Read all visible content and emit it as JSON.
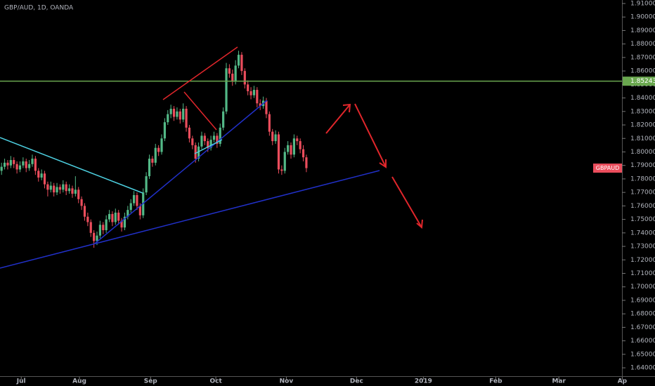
{
  "chart_data": {
    "type": "candlestick",
    "title": "GBP/AUD, 1D, OANDA",
    "up_color": "#53b987",
    "down_color": "#eb4d5c",
    "ohlc": [
      [
        1.786,
        1.792,
        1.783,
        1.789
      ],
      [
        1.789,
        1.795,
        1.787,
        1.792
      ],
      [
        1.792,
        1.794,
        1.787,
        1.79
      ],
      [
        1.79,
        1.797,
        1.788,
        1.794
      ],
      [
        1.794,
        1.796,
        1.788,
        1.791
      ],
      [
        1.791,
        1.793,
        1.784,
        1.787
      ],
      [
        1.787,
        1.793,
        1.785,
        1.79
      ],
      [
        1.79,
        1.796,
        1.788,
        1.793
      ],
      [
        1.793,
        1.795,
        1.785,
        1.788
      ],
      [
        1.788,
        1.794,
        1.786,
        1.791
      ],
      [
        1.791,
        1.798,
        1.789,
        1.795
      ],
      [
        1.795,
        1.797,
        1.783,
        1.786
      ],
      [
        1.786,
        1.788,
        1.778,
        1.781
      ],
      [
        1.781,
        1.787,
        1.779,
        1.784
      ],
      [
        1.784,
        1.786,
        1.773,
        1.776
      ],
      [
        1.776,
        1.778,
        1.767,
        1.772
      ],
      [
        1.772,
        1.778,
        1.77,
        1.775
      ],
      [
        1.775,
        1.777,
        1.767,
        1.77
      ],
      [
        1.77,
        1.777,
        1.768,
        1.774
      ],
      [
        1.774,
        1.776,
        1.769,
        1.772
      ],
      [
        1.772,
        1.779,
        1.77,
        1.776
      ],
      [
        1.776,
        1.778,
        1.768,
        1.771
      ],
      [
        1.771,
        1.776,
        1.769,
        1.773
      ],
      [
        1.773,
        1.775,
        1.766,
        1.769
      ],
      [
        1.769,
        1.782,
        1.767,
        1.772
      ],
      [
        1.772,
        1.774,
        1.762,
        1.765
      ],
      [
        1.765,
        1.767,
        1.757,
        1.76
      ],
      [
        1.76,
        1.762,
        1.749,
        1.752
      ],
      [
        1.752,
        1.755,
        1.745,
        1.748
      ],
      [
        1.748,
        1.75,
        1.737,
        1.74
      ],
      [
        1.74,
        1.742,
        1.729,
        1.734
      ],
      [
        1.734,
        1.741,
        1.731,
        1.738
      ],
      [
        1.738,
        1.749,
        1.736,
        1.746
      ],
      [
        1.746,
        1.748,
        1.739,
        1.742
      ],
      [
        1.742,
        1.753,
        1.74,
        1.75
      ],
      [
        1.75,
        1.757,
        1.748,
        1.754
      ],
      [
        1.754,
        1.756,
        1.745,
        1.748
      ],
      [
        1.748,
        1.758,
        1.746,
        1.755
      ],
      [
        1.755,
        1.757,
        1.746,
        1.749
      ],
      [
        1.749,
        1.751,
        1.741,
        1.744
      ],
      [
        1.744,
        1.755,
        1.742,
        1.752
      ],
      [
        1.752,
        1.76,
        1.75,
        1.757
      ],
      [
        1.757,
        1.765,
        1.755,
        1.762
      ],
      [
        1.762,
        1.771,
        1.76,
        1.768
      ],
      [
        1.768,
        1.77,
        1.757,
        1.76
      ],
      [
        1.76,
        1.762,
        1.75,
        1.753
      ],
      [
        1.753,
        1.773,
        1.751,
        1.77
      ],
      [
        1.77,
        1.785,
        1.768,
        1.782
      ],
      [
        1.782,
        1.798,
        1.78,
        1.795
      ],
      [
        1.795,
        1.797,
        1.789,
        1.792
      ],
      [
        1.792,
        1.806,
        1.79,
        1.803
      ],
      [
        1.803,
        1.805,
        1.797,
        1.8
      ],
      [
        1.8,
        1.813,
        1.798,
        1.81
      ],
      [
        1.81,
        1.825,
        1.808,
        1.822
      ],
      [
        1.822,
        1.831,
        1.82,
        1.828
      ],
      [
        1.828,
        1.835,
        1.825,
        1.832
      ],
      [
        1.832,
        1.834,
        1.823,
        1.826
      ],
      [
        1.826,
        1.833,
        1.824,
        1.83
      ],
      [
        1.83,
        1.832,
        1.821,
        1.824
      ],
      [
        1.824,
        1.836,
        1.822,
        1.832
      ],
      [
        1.832,
        1.834,
        1.815,
        1.818
      ],
      [
        1.818,
        1.82,
        1.807,
        1.81
      ],
      [
        1.81,
        1.812,
        1.802,
        1.805
      ],
      [
        1.805,
        1.807,
        1.792,
        1.795
      ],
      [
        1.795,
        1.807,
        1.793,
        1.804
      ],
      [
        1.804,
        1.815,
        1.802,
        1.812
      ],
      [
        1.812,
        1.814,
        1.805,
        1.808
      ],
      [
        1.808,
        1.81,
        1.8,
        1.803
      ],
      [
        1.803,
        1.812,
        1.801,
        1.809
      ],
      [
        1.809,
        1.815,
        1.807,
        1.812
      ],
      [
        1.812,
        1.814,
        1.803,
        1.806
      ],
      [
        1.806,
        1.821,
        1.804,
        1.818
      ],
      [
        1.818,
        1.833,
        1.816,
        1.83
      ],
      [
        1.83,
        1.866,
        1.828,
        1.862
      ],
      [
        1.862,
        1.865,
        1.855,
        1.858
      ],
      [
        1.858,
        1.861,
        1.849,
        1.852
      ],
      [
        1.852,
        1.868,
        1.85,
        1.864
      ],
      [
        1.864,
        1.875,
        1.862,
        1.872
      ],
      [
        1.872,
        1.874,
        1.857,
        1.86
      ],
      [
        1.86,
        1.862,
        1.847,
        1.85
      ],
      [
        1.85,
        1.853,
        1.842,
        1.845
      ],
      [
        1.845,
        1.848,
        1.839,
        1.842
      ],
      [
        1.842,
        1.849,
        1.84,
        1.846
      ],
      [
        1.846,
        1.848,
        1.833,
        1.836
      ],
      [
        1.836,
        1.839,
        1.831,
        1.834
      ],
      [
        1.834,
        1.841,
        1.832,
        1.838
      ],
      [
        1.838,
        1.84,
        1.825,
        1.828
      ],
      [
        1.828,
        1.83,
        1.812,
        1.815
      ],
      [
        1.815,
        1.817,
        1.805,
        1.808
      ],
      [
        1.808,
        1.816,
        1.806,
        1.813
      ],
      [
        1.813,
        1.815,
        1.784,
        1.787
      ],
      [
        1.787,
        1.79,
        1.783,
        1.786
      ],
      [
        1.786,
        1.803,
        1.784,
        1.8
      ],
      [
        1.8,
        1.808,
        1.798,
        1.805
      ],
      [
        1.805,
        1.807,
        1.795,
        1.798
      ],
      [
        1.798,
        1.813,
        1.796,
        1.81
      ],
      [
        1.81,
        1.812,
        1.805,
        1.808
      ],
      [
        1.808,
        1.81,
        1.799,
        1.802
      ],
      [
        1.802,
        1.805,
        1.793,
        1.796
      ],
      [
        1.796,
        1.798,
        1.785,
        1.788
      ]
    ],
    "xlim": [
      -0.5,
      201.5
    ],
    "xticks": [
      {
        "value": 6.4,
        "label": "Jul"
      },
      {
        "value": 25.3,
        "label": "Aug"
      },
      {
        "value": 48.4,
        "label": "Sep"
      },
      {
        "value": 69.6,
        "label": "Oct"
      },
      {
        "value": 92.5,
        "label": "Nov"
      },
      {
        "value": 115.3,
        "label": "Dec"
      },
      {
        "value": 137,
        "label": "2019"
      },
      {
        "value": 160.5,
        "label": "Feb"
      },
      {
        "value": 181,
        "label": "Mar"
      },
      {
        "value": 201.6,
        "label": "Ap"
      }
    ],
    "ylim": [
      1.6338,
      1.9126
    ],
    "yticks": [
      {
        "value": 1.91,
        "label": "1.91000"
      },
      {
        "value": 1.9,
        "label": "1.90000"
      },
      {
        "value": 1.89,
        "label": "1.89000"
      },
      {
        "value": 1.88,
        "label": "1.88000"
      },
      {
        "value": 1.87,
        "label": "1.87000"
      },
      {
        "value": 1.86,
        "label": "1.86000"
      },
      {
        "value": 1.85,
        "label": "1.85000"
      },
      {
        "value": 1.84,
        "label": "1.84000"
      },
      {
        "value": 1.83,
        "label": "1.83000"
      },
      {
        "value": 1.82,
        "label": "1.82000"
      },
      {
        "value": 1.81,
        "label": "1.81000"
      },
      {
        "value": 1.8,
        "label": "1.80000"
      },
      {
        "value": 1.79,
        "label": "1.79000"
      },
      {
        "value": 1.78,
        "label": "1.78000"
      },
      {
        "value": 1.77,
        "label": "1.77000"
      },
      {
        "value": 1.76,
        "label": "1.76000"
      },
      {
        "value": 1.75,
        "label": "1.75000"
      },
      {
        "value": 1.74,
        "label": "1.74000"
      },
      {
        "value": 1.73,
        "label": "1.73000"
      },
      {
        "value": 1.72,
        "label": "1.72000"
      },
      {
        "value": 1.71,
        "label": "1.71000"
      },
      {
        "value": 1.7,
        "label": "1.70000"
      },
      {
        "value": 1.69,
        "label": "1.69000"
      },
      {
        "value": 1.68,
        "label": "1.68000"
      },
      {
        "value": 1.67,
        "label": "1.67000"
      },
      {
        "value": 1.66,
        "label": "1.66000"
      },
      {
        "value": 1.65,
        "label": "1.65000"
      },
      {
        "value": 1.64,
        "label": "1.64000"
      }
    ],
    "level": {
      "value": 1.85243,
      "color": "#6aa84f"
    },
    "symbol_label": "GBPAUD"
  }
}
